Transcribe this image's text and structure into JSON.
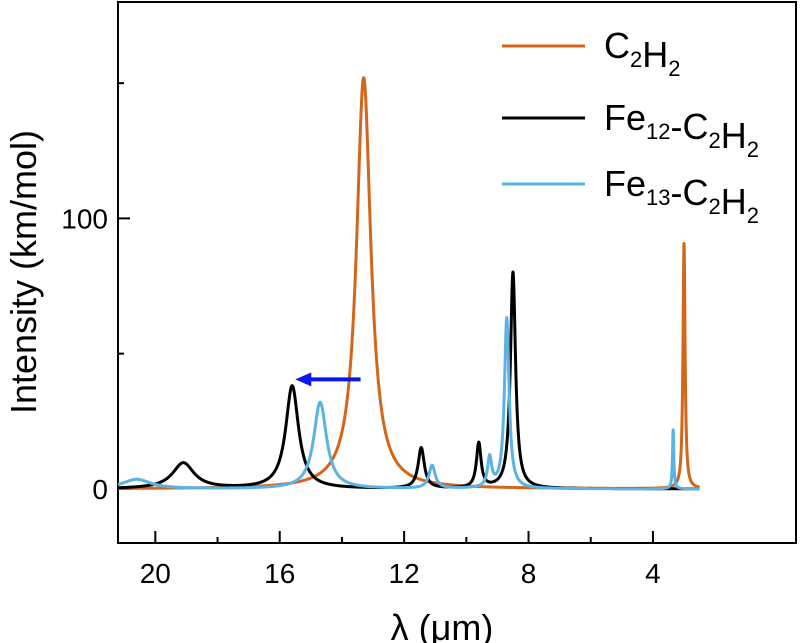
{
  "chart_data": {
    "type": "line",
    "xlabel": "λ (μm)",
    "ylabel": "Intensity (km/mol)",
    "xlim": [
      21.2,
      -0.6
    ],
    "ylim": [
      -20,
      180
    ],
    "xticks": [
      {
        "value": 20,
        "label": "20"
      },
      {
        "value": 16,
        "label": "16"
      },
      {
        "value": 12,
        "label": "12"
      },
      {
        "value": 8,
        "label": "8"
      },
      {
        "value": 4,
        "label": "4"
      }
    ],
    "xminor": [
      18,
      14,
      10,
      6
    ],
    "yticks": [
      {
        "value": 0,
        "label": "0"
      },
      {
        "value": 100,
        "label": "100"
      }
    ],
    "yminor": [
      50,
      150
    ],
    "series": [
      {
        "name": "C2H2",
        "base": "C",
        "sub1": "2",
        "mid": "H",
        "sub2": "2",
        "color": "#d4661a",
        "peaks": [
          {
            "x": 13.3,
            "height": 152,
            "width": 0.28
          },
          {
            "x": 3.0,
            "height": 91,
            "width": 0.04
          }
        ]
      },
      {
        "name": "Fe12-C2H2",
        "base": "Fe",
        "sub0": "12",
        "mid": "-C",
        "sub1": "2",
        "mid2": "H",
        "sub2": "2",
        "color": "#000000",
        "peaks": [
          {
            "x": 19.1,
            "height": 9.5,
            "width": 0.42
          },
          {
            "x": 15.6,
            "height": 38,
            "width": 0.25
          },
          {
            "x": 11.45,
            "height": 15,
            "width": 0.12
          },
          {
            "x": 9.6,
            "height": 16.5,
            "width": 0.09
          },
          {
            "x": 8.5,
            "height": 80,
            "width": 0.1
          }
        ]
      },
      {
        "name": "Fe13-C2H2",
        "base": "Fe",
        "sub0": "13",
        "mid": "-C",
        "sub1": "2",
        "mid2": "H",
        "sub2": "2",
        "color": "#5bb3e3",
        "peaks": [
          {
            "x": 20.6,
            "height": 3.5,
            "width": 0.55
          },
          {
            "x": 14.7,
            "height": 32,
            "width": 0.25
          },
          {
            "x": 11.1,
            "height": 8.5,
            "width": 0.12
          },
          {
            "x": 9.25,
            "height": 11,
            "width": 0.08
          },
          {
            "x": 8.7,
            "height": 63,
            "width": 0.09
          },
          {
            "x": 3.35,
            "height": 22,
            "width": 0.025
          }
        ]
      }
    ],
    "annotation": {
      "type": "arrow",
      "color": "#0a18f0",
      "from": [
        13.4,
        40.5
      ],
      "to": [
        15.5,
        40.5
      ]
    }
  }
}
